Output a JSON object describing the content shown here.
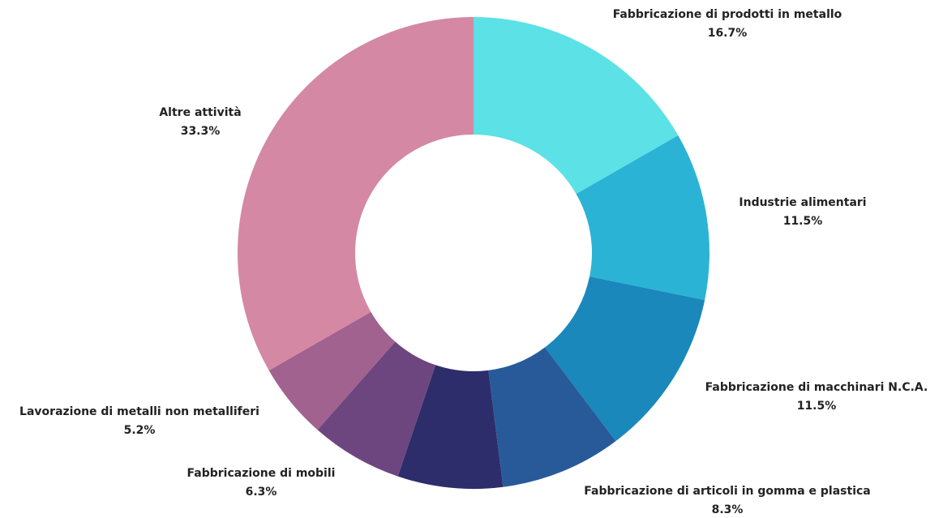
{
  "chart_data": {
    "type": "donut",
    "categories": [
      "Fabbricazione di prodotti in metallo",
      "Industrie alimentari",
      "Fabbricazione di macchinari N.C.A.",
      "Fabbricazione di articoli in gomma e plastica",
      null,
      "Fabbricazione di mobili",
      "Lavorazione di metalli non metalliferi",
      "Altre attività"
    ],
    "values": [
      16.7,
      11.5,
      11.5,
      8.3,
      7.2,
      6.3,
      5.2,
      33.3
    ],
    "value_labels": [
      "16.7%",
      "11.5%",
      "11.5%",
      "8.3%",
      null,
      "6.3%",
      "5.2%",
      "33.3%"
    ],
    "colors": [
      "#5ce1e6",
      "#2bb3d6",
      "#1a88bb",
      "#285a9a",
      "#2d2d6b",
      "#6d4680",
      "#a26290",
      "#d488a3"
    ]
  }
}
